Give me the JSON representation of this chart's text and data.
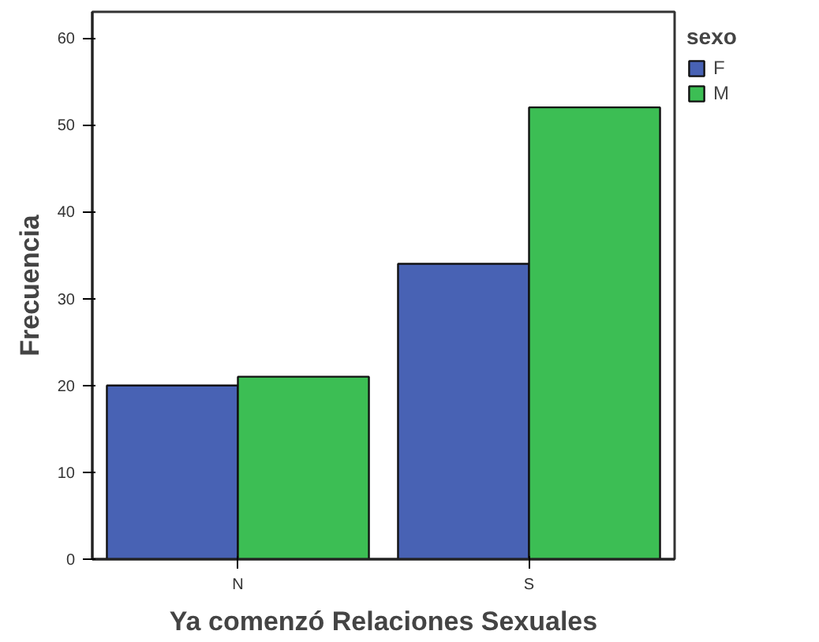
{
  "chart_data": {
    "type": "bar",
    "xlabel": "Ya comenzó Relaciones Sexuales",
    "ylabel": "Frecuencia",
    "legend_title": "sexo",
    "categories": [
      "N",
      "S"
    ],
    "series": [
      {
        "name": "F",
        "color": "#4862b4",
        "values": [
          20,
          34
        ]
      },
      {
        "name": "M",
        "color": "#3cbe54",
        "values": [
          21,
          52
        ]
      }
    ],
    "ylim": [
      0,
      63
    ],
    "yticks": [
      0,
      10,
      20,
      30,
      40,
      50,
      60
    ],
    "grid": false,
    "legend": "top right"
  }
}
